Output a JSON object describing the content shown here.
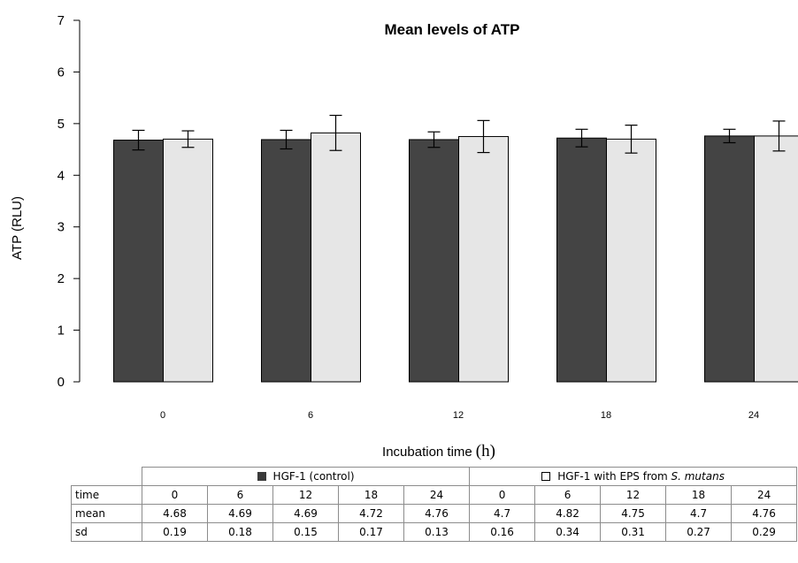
{
  "chart_data": {
    "type": "bar",
    "title": "Mean levels of ATP",
    "xlabel": "Incubation time",
    "xlabel_unit": "(h)",
    "ylabel": "ATP (RLU)",
    "ylim": [
      0,
      7
    ],
    "yticks": [
      "0",
      "1",
      "2",
      "3",
      "4",
      "5",
      "6",
      "7"
    ],
    "categories": [
      "0",
      "6",
      "12",
      "18",
      "24"
    ],
    "series": [
      {
        "name": "HGF-1 (control)",
        "color": "#444444",
        "values": [
          4.68,
          4.69,
          4.69,
          4.72,
          4.76
        ],
        "sd": [
          0.19,
          0.18,
          0.15,
          0.17,
          0.13
        ]
      },
      {
        "name": "HGF-1 with EPS from S. mutans",
        "color": "#e6e6e6",
        "values": [
          4.7,
          4.82,
          4.75,
          4.7,
          4.76
        ],
        "sd": [
          0.16,
          0.34,
          0.31,
          0.27,
          0.29
        ]
      }
    ]
  },
  "table": {
    "group1_label": "HGF-1 (control)",
    "group2_label_prefix": "HGF-1 with EPS from ",
    "group2_label_species": "S. mutans",
    "row_time_label": "time",
    "row_mean_label": "mean",
    "row_sd_label": "sd",
    "times": [
      "0",
      "6",
      "12",
      "18",
      "24",
      "0",
      "6",
      "12",
      "18",
      "24"
    ],
    "means": [
      "4.68",
      "4.69",
      "4.69",
      "4.72",
      "4.76",
      "4.7",
      "4.82",
      "4.75",
      "4.7",
      "4.76"
    ],
    "sds": [
      "0.19",
      "0.18",
      "0.15",
      "0.17",
      "0.13",
      "0.16",
      "0.34",
      "0.31",
      "0.27",
      "0.29"
    ]
  }
}
